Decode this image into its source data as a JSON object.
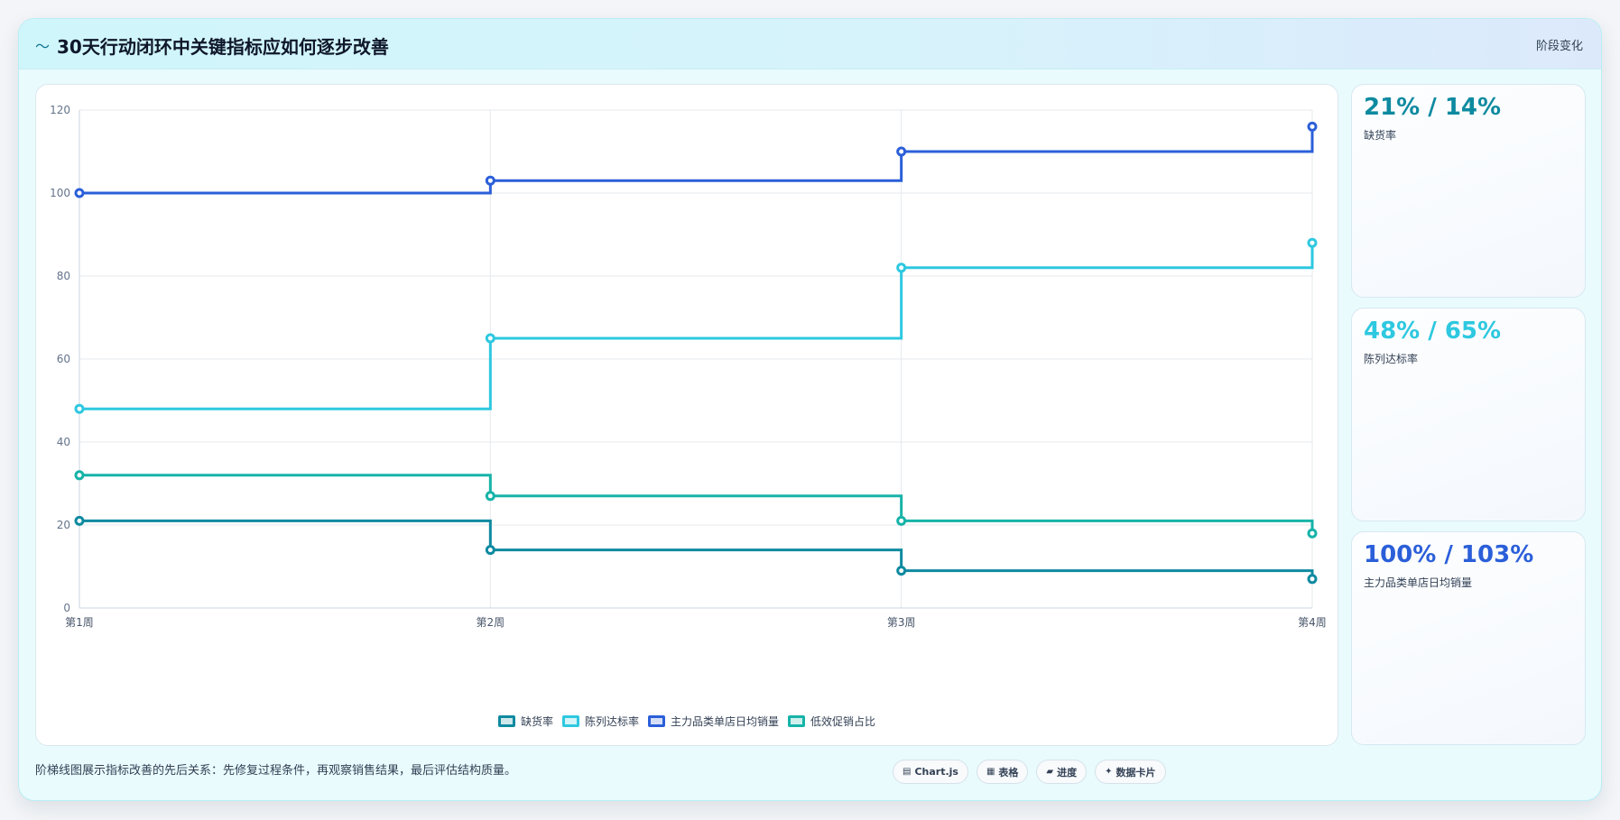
{
  "header": {
    "logo_icon": "〜",
    "title": "30天行动闭环中关键指标应如何逐步改善",
    "stage_label": "阶段变化"
  },
  "chart_data": {
    "type": "line",
    "step": true,
    "categories": [
      "第1周",
      "第2周",
      "第3周",
      "第4周"
    ],
    "series": [
      {
        "name": "缺货率",
        "values": [
          21,
          14,
          9,
          7
        ],
        "color": "#0e8aa0"
      },
      {
        "name": "陈列达标率",
        "values": [
          48,
          65,
          82,
          88
        ],
        "color": "#2ec8e0"
      },
      {
        "name": "主力品类单店日均销量",
        "values": [
          100,
          103,
          110,
          116
        ],
        "color": "#2b5fd9"
      },
      {
        "name": "低效促销占比",
        "values": [
          32,
          27,
          21,
          18
        ],
        "color": "#16b3a8"
      }
    ],
    "ylim": [
      0,
      120
    ],
    "yticks": [
      0,
      20,
      40,
      60,
      80,
      100,
      120
    ],
    "grid": true,
    "legend": "bottom"
  },
  "stat_cards": [
    {
      "value": "21% / 14%",
      "label": "缺货率",
      "color": "#0e8aa0"
    },
    {
      "value": "48% / 65%",
      "label": "陈列达标率",
      "color": "#2ec8e0"
    },
    {
      "value": "100% / 103%",
      "label": "主力品类单店日均销量",
      "color": "#2b5fd9"
    }
  ],
  "footer": {
    "note": "阶梯线图展示指标改善的先后关系：先修复过程条件，再观察销售结果，最后评估结构质量。",
    "chips": [
      {
        "icon": "▤",
        "label": "Chart.js"
      },
      {
        "icon": "▦",
        "label": "表格"
      },
      {
        "icon": "▰",
        "label": "进度"
      },
      {
        "icon": "✦",
        "label": "数据卡片"
      }
    ]
  }
}
